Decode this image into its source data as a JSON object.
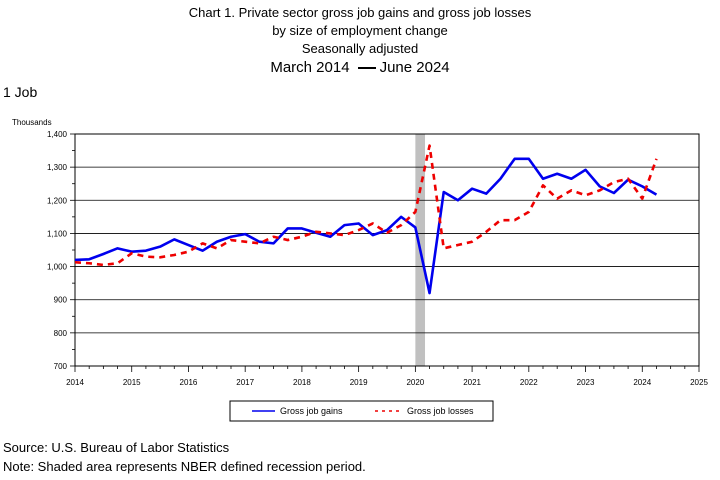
{
  "title": {
    "line1": "Chart 1. Private sector gross job gains and gross job losses",
    "line2": "by size of employment change",
    "line3": "Seasonally adjusted",
    "line4_start": "March 2014",
    "line4_end": "June 2024"
  },
  "subtitle": "1 Job",
  "footer": {
    "source": "Source: U.S. Bureau of Labor Statistics",
    "note": "Note: Shaded area represents NBER defined recession period."
  },
  "colors": {
    "gains": "#0000ee",
    "losses": "#ee0000",
    "recession": "#c0c0c0"
  },
  "chart_data": {
    "type": "line",
    "ylabel": "Thousands",
    "xlim": [
      2014,
      2025
    ],
    "ylim": [
      700,
      1400
    ],
    "grid": true,
    "legend_position": "bottom-center",
    "x_ticks": [
      "2014",
      "2015",
      "2016",
      "2017",
      "2018",
      "2019",
      "2020",
      "2021",
      "2022",
      "2023",
      "2024",
      "2025"
    ],
    "y_ticks": [
      "700",
      "800",
      "900",
      "1,000",
      "1,100",
      "1,200",
      "1,300",
      "1,400"
    ],
    "recession": [
      2020.0,
      2020.17
    ],
    "x": [
      2014.0,
      2014.25,
      2014.5,
      2014.75,
      2015.0,
      2015.25,
      2015.5,
      2015.75,
      2016.0,
      2016.25,
      2016.5,
      2016.75,
      2017.0,
      2017.25,
      2017.5,
      2017.75,
      2018.0,
      2018.25,
      2018.5,
      2018.75,
      2019.0,
      2019.25,
      2019.5,
      2019.75,
      2020.0,
      2020.25,
      2020.5,
      2020.75,
      2021.0,
      2021.25,
      2021.5,
      2021.75,
      2022.0,
      2022.25,
      2022.5,
      2022.75,
      2023.0,
      2023.25,
      2023.5,
      2023.75,
      2024.0,
      2024.25
    ],
    "series": [
      {
        "name": "Gross job gains",
        "values": [
          1020,
          1022,
          1038,
          1055,
          1045,
          1048,
          1060,
          1082,
          1065,
          1048,
          1075,
          1090,
          1098,
          1075,
          1070,
          1115,
          1115,
          1102,
          1090,
          1125,
          1130,
          1095,
          1110,
          1150,
          1118,
          920,
          1225,
          1200,
          1235,
          1220,
          1265,
          1325,
          1325,
          1265,
          1280,
          1265,
          1292,
          1242,
          1222,
          1262,
          1242,
          1217
        ]
      },
      {
        "name": "Gross job losses",
        "values": [
          1013,
          1010,
          1005,
          1010,
          1040,
          1030,
          1028,
          1035,
          1045,
          1070,
          1055,
          1080,
          1075,
          1070,
          1090,
          1080,
          1090,
          1105,
          1100,
          1095,
          1110,
          1130,
          1102,
          1125,
          1165,
          1365,
          1055,
          1065,
          1075,
          1105,
          1140,
          1140,
          1165,
          1245,
          1205,
          1230,
          1215,
          1230,
          1255,
          1265,
          1205,
          1325
        ]
      }
    ]
  }
}
